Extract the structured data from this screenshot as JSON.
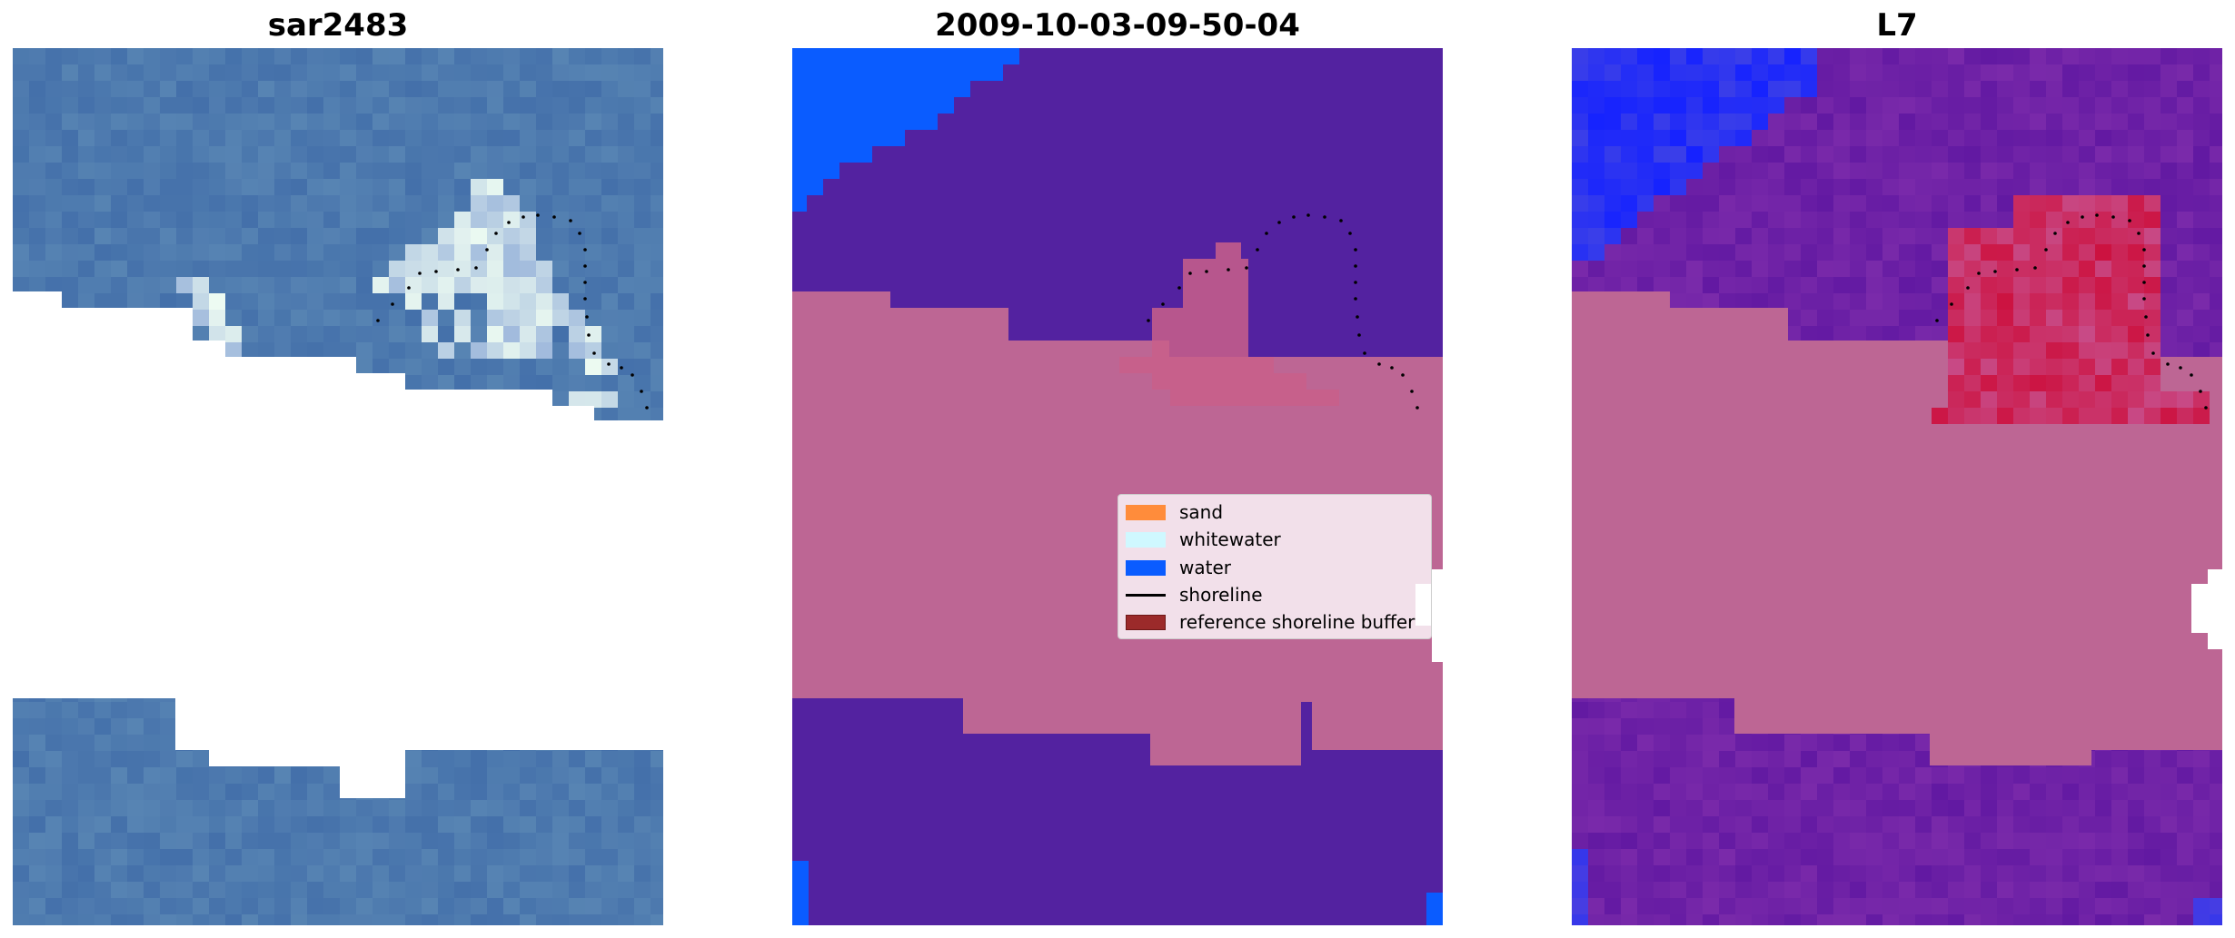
{
  "panels": [
    {
      "title": "sar2483"
    },
    {
      "title": "2009-10-03-09-50-04"
    },
    {
      "title": "L7"
    }
  ],
  "legend": {
    "items": [
      {
        "label": "sand",
        "type": "patch",
        "color": "#ff8c3b"
      },
      {
        "label": "whitewater",
        "type": "patch",
        "color": "#cff8ff"
      },
      {
        "label": "water",
        "type": "patch",
        "color": "#0a5cff"
      },
      {
        "label": "shoreline",
        "type": "line",
        "color": "#000000"
      },
      {
        "label": "reference shoreline buffer",
        "type": "patch",
        "color": "#9b2a2a",
        "edge": "#6e1717"
      }
    ]
  },
  "colors": {
    "rgb_water": "#4a75ad",
    "class_water": "#5322a0",
    "class_buffer": "#bd6694",
    "class_blue": "#0a5cff",
    "class_sand_mix": "#c95f8a",
    "index_purple": "#6a1fa6",
    "index_blue": "#1f2bff",
    "index_red": "#cc1240",
    "shoreline": "#000000"
  }
}
